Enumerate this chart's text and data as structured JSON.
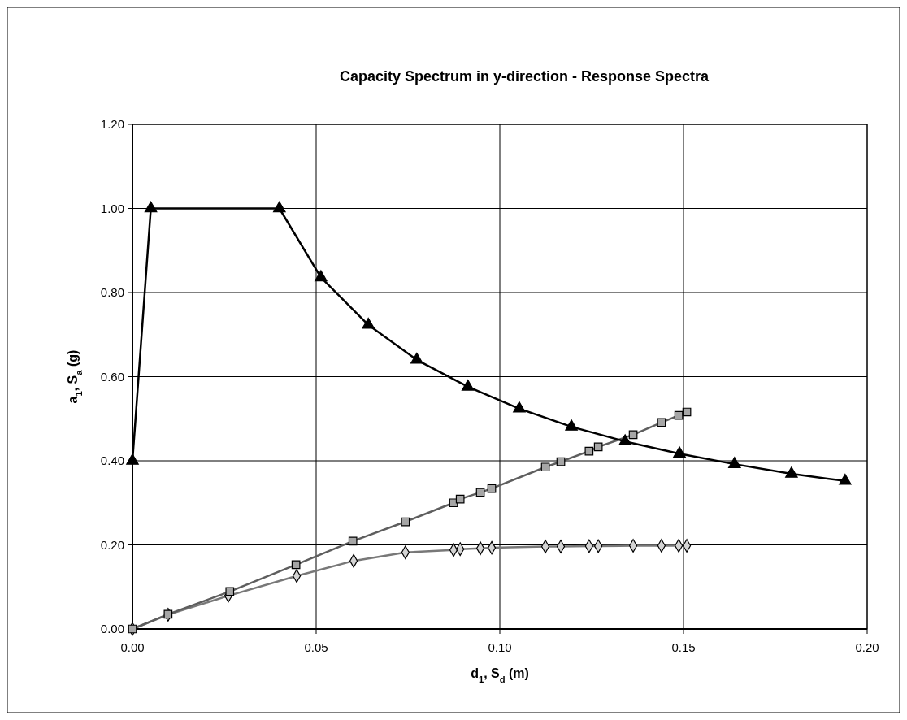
{
  "chart_data": {
    "type": "line",
    "title": "Capacity Spectrum in y-direction - Response Spectra",
    "xlabel": "d$_{1}$, S$_{d}$ (m)",
    "ylabel": "a$_{1}$, S$_{a}$ (g)",
    "xlim": [
      0,
      0.2
    ],
    "ylim": [
      0,
      1.2
    ],
    "xticks": [
      {
        "value": 0,
        "label": "0.00"
      },
      {
        "value": 0.05,
        "label": "0.05"
      },
      {
        "value": 0.1,
        "label": "0.10"
      },
      {
        "value": 0.15,
        "label": "0.15"
      },
      {
        "value": 0.2,
        "label": "0.20"
      }
    ],
    "yticks": [
      {
        "value": 0,
        "label": "0.00"
      },
      {
        "value": 0.2,
        "label": "0.20"
      },
      {
        "value": 0.4,
        "label": "0.40"
      },
      {
        "value": 0.6,
        "label": "0.60"
      },
      {
        "value": 0.8,
        "label": "0.80"
      },
      {
        "value": 1,
        "label": "1.00"
      },
      {
        "value": 1.2,
        "label": "1.20"
      }
    ],
    "grid": true,
    "series": [
      {
        "color": "#000000",
        "marker": "triangle",
        "x": [
          0,
          0.005,
          0.04,
          0.0513,
          0.0642,
          0.0774,
          0.0913,
          0.1053,
          0.1195,
          0.1341,
          0.1489,
          0.1639,
          0.1794,
          0.194
        ],
        "values": [
          0.4,
          1,
          1,
          0.836,
          0.723,
          0.64,
          0.576,
          0.524,
          0.481,
          0.446,
          0.417,
          0.392,
          0.369,
          0.352
        ]
      },
      {
        "color": "#a6a6a6",
        "marker": "square",
        "x": [
          0,
          0.0097,
          0.0265,
          0.0445,
          0.06,
          0.0743,
          0.0874,
          0.0892,
          0.0947,
          0.0978,
          0.1124,
          0.1166,
          0.1243,
          0.1268,
          0.1363,
          0.144,
          0.1487,
          0.1509
        ],
        "values": [
          0,
          0.035,
          0.089,
          0.153,
          0.209,
          0.255,
          0.3,
          0.309,
          0.325,
          0.334,
          0.385,
          0.398,
          0.423,
          0.433,
          0.462,
          0.491,
          0.508,
          0.516
        ]
      },
      {
        "color": "#d4d4d4",
        "marker": "diamond",
        "x": [
          0,
          0.0097,
          0.0261,
          0.0447,
          0.0602,
          0.0743,
          0.0874,
          0.0892,
          0.0947,
          0.0978,
          0.1124,
          0.1166,
          0.1243,
          0.1268,
          0.1363,
          0.144,
          0.1487,
          0.1509
        ],
        "values": [
          0,
          0.034,
          0.079,
          0.126,
          0.162,
          0.182,
          0.188,
          0.19,
          0.192,
          0.193,
          0.196,
          0.196,
          0.197,
          0.197,
          0.198,
          0.198,
          0.198,
          0.198
        ]
      }
    ]
  }
}
